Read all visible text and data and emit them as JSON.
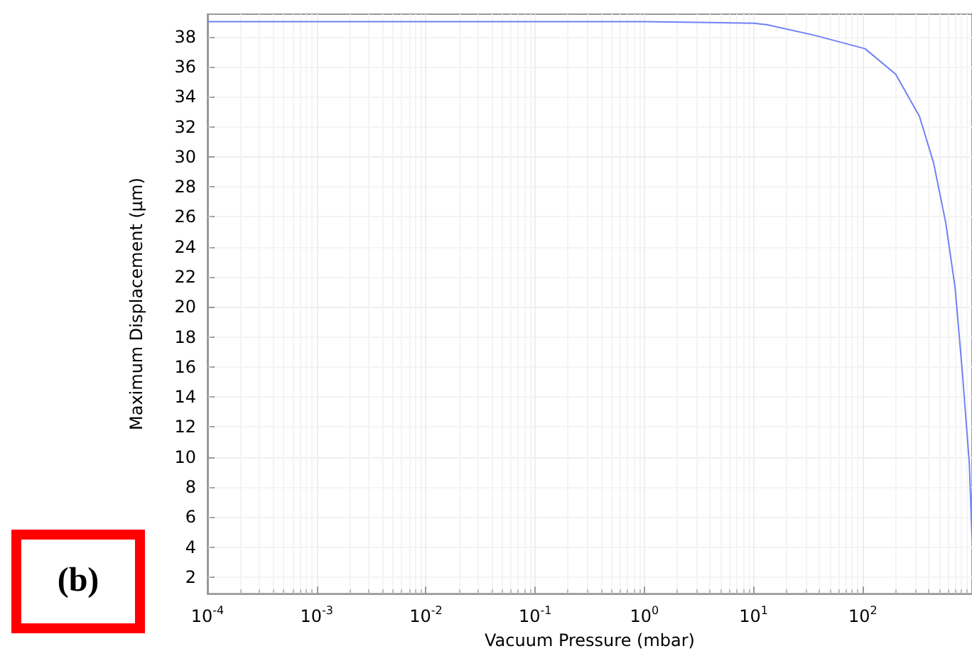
{
  "chart_data": {
    "type": "line",
    "xlabel": "Vacuum Pressure (mbar)",
    "ylabel": "Maximum Displacement (μm)",
    "annotations": [
      "(b)"
    ],
    "log": "x",
    "grid": true,
    "marker": "none",
    "line_style": "solid",
    "x": [
      0.0001,
      0.001,
      0.01,
      0.1,
      1,
      10,
      13.2,
      36,
      105,
      200,
      330,
      445,
      575,
      700,
      815,
      945,
      1000
    ],
    "series": [
      {
        "color": "#6f82f5",
        "values": [
          39.0,
          39.0,
          39.0,
          39.0,
          39.0,
          38.9,
          38.8,
          38.1,
          37.2,
          35.5,
          32.7,
          29.6,
          25.6,
          21.3,
          15.7,
          9.6,
          4.6
        ]
      }
    ],
    "xlim": [
      0.0001,
      1000
    ],
    "xticks": [
      {
        "value": 0.0001,
        "label": "10$^{-4}$"
      },
      {
        "value": 0.001,
        "label": "10$^{-3}$"
      },
      {
        "value": 0.01,
        "label": "10$^{-2}$"
      },
      {
        "value": 0.1,
        "label": "10$^{-1}$"
      },
      {
        "value": 1,
        "label": "10$^{0}$"
      },
      {
        "value": 10,
        "label": "10$^{1}$"
      },
      {
        "value": 100,
        "label": "10$^{2}$"
      }
    ],
    "ylim": [
      0.9,
      39.5
    ],
    "yticks": [
      2,
      4,
      6,
      8,
      10,
      12,
      14,
      16,
      18,
      20,
      22,
      24,
      26,
      28,
      30,
      32,
      34,
      36,
      38
    ]
  }
}
